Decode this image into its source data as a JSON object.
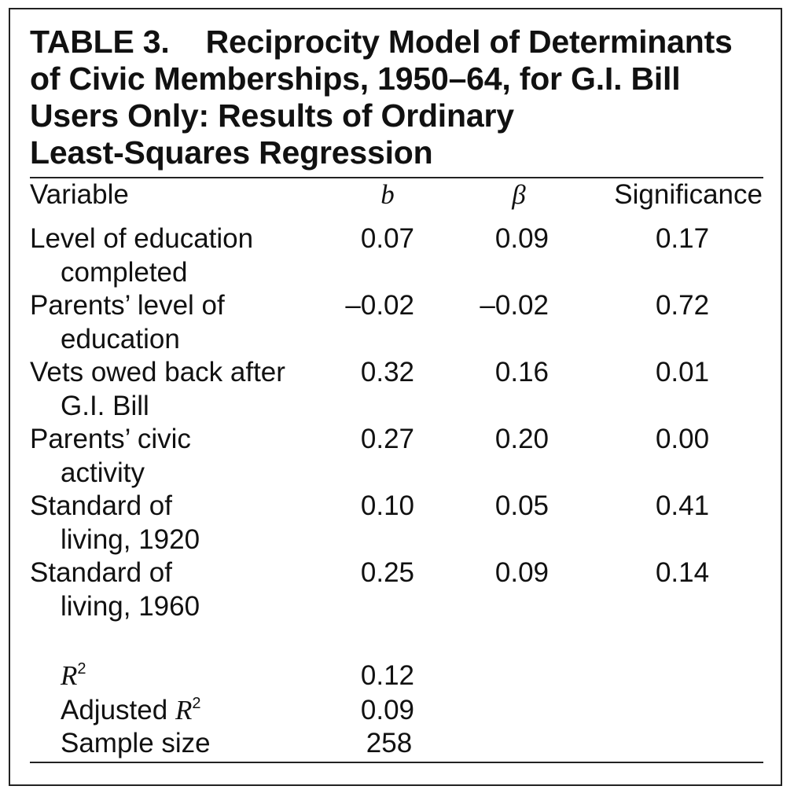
{
  "table": {
    "number": "TABLE 3.",
    "title_lines": [
      "Reciprocity Model of Determinants",
      "of Civic Memberships, 1950–64, for G.I. Bill",
      "Users Only: Results of Ordinary",
      "Least-Squares Regression"
    ],
    "columns": [
      "Variable",
      "b",
      "β",
      "Significance"
    ],
    "rows": [
      {
        "variable": [
          "Level of education",
          "completed"
        ],
        "b": "0.07",
        "beta": "0.09",
        "significance": "0.17"
      },
      {
        "variable": [
          "Parents’ level of",
          "education"
        ],
        "b": "–0.02",
        "beta": "–0.02",
        "significance": "0.72"
      },
      {
        "variable": [
          "Vets owed back after",
          "G.I. Bill"
        ],
        "b": "0.32",
        "beta": "0.16",
        "significance": "0.01"
      },
      {
        "variable": [
          "Parents’ civic",
          "activity"
        ],
        "b": "0.27",
        "beta": "0.20",
        "significance": "0.00"
      },
      {
        "variable": [
          "Standard of",
          "living, 1920"
        ],
        "b": "0.10",
        "beta": "0.05",
        "significance": "0.41"
      },
      {
        "variable": [
          "Standard of",
          "living, 1960"
        ],
        "b": "0.25",
        "beta": "0.09",
        "significance": "0.14"
      }
    ],
    "stats": [
      {
        "label": "",
        "label_italic": "R",
        "sup": "2",
        "value": "0.12"
      },
      {
        "label": "Adjusted ",
        "label_italic": "R",
        "sup": "2",
        "value": "0.09"
      },
      {
        "label": "Sample size",
        "label_italic": "",
        "sup": "",
        "value": "258"
      }
    ]
  }
}
